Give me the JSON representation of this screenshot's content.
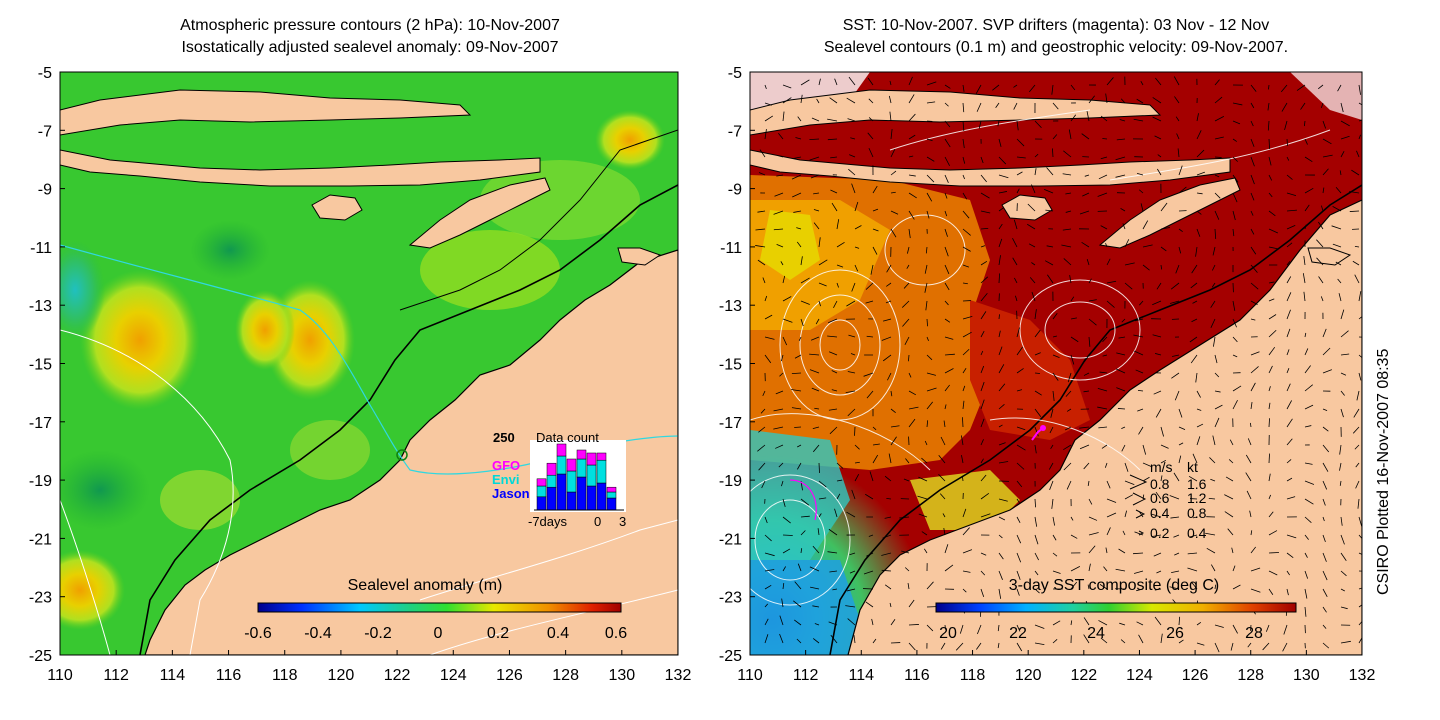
{
  "left_panel": {
    "title_line1": "Atmospheric pressure contours (2 hPa): 10-Nov-2007",
    "title_line2": "Isostatically adjusted sealevel anomaly: 09-Nov-2007",
    "colorbar_label": "Sealevel anomaly (m)",
    "colorbar_ticks": [
      "-0.6",
      "-0.4",
      "-0.2",
      "0",
      "0.2",
      "0.4",
      "0.6"
    ],
    "colors": {
      "sea": "#22c020",
      "land": "#f8c8a0"
    },
    "data_count_inset": {
      "max_label": "250",
      "title": "Data count",
      "legend": [
        {
          "name": "GFO",
          "color": "#ff00ff"
        },
        {
          "name": "Envi",
          "color": "#00e0e0"
        },
        {
          "name": "Jason",
          "color": "#0000ff"
        }
      ],
      "axis_labels": [
        "-7days",
        "0",
        "3"
      ],
      "bars": [
        {
          "jason": 0.22,
          "envi": 0.18,
          "gfo": 0.12
        },
        {
          "jason": 0.38,
          "envi": 0.2,
          "gfo": 0.2
        },
        {
          "jason": 0.6,
          "envi": 0.3,
          "gfo": 0.2
        },
        {
          "jason": 0.3,
          "envi": 0.35,
          "gfo": 0.2
        },
        {
          "jason": 0.55,
          "envi": 0.3,
          "gfo": 0.15
        },
        {
          "jason": 0.4,
          "envi": 0.35,
          "gfo": 0.2
        },
        {
          "jason": 0.45,
          "envi": 0.38,
          "gfo": 0.12
        },
        {
          "jason": 0.2,
          "envi": 0.1,
          "gfo": 0.08
        }
      ]
    }
  },
  "right_panel": {
    "title_line1": "SST: 10-Nov-2007. SVP drifters (magenta): 03 Nov - 12 Nov",
    "title_line2": "Sealevel contours (0.1 m) and geostrophic velocity: 09-Nov-2007.",
    "colorbar_label": "3-day SST composite (deg C)",
    "colorbar_ticks": [
      "20",
      "22",
      "24",
      "26",
      "28"
    ],
    "colors": {
      "warm_sea": "#a00000",
      "land": "#f8c8a0"
    },
    "velocity_legend": {
      "header": [
        "m/s",
        "kt"
      ],
      "rows": [
        [
          "0.8",
          "1.6"
        ],
        [
          "0.6",
          "1.2"
        ],
        [
          "0.4",
          "0.8"
        ],
        [
          "0.2",
          "0.4"
        ]
      ]
    }
  },
  "axes": {
    "x_ticks": [
      "110",
      "112",
      "114",
      "116",
      "118",
      "120",
      "122",
      "124",
      "126",
      "128",
      "130",
      "132"
    ],
    "y_ticks": [
      "-5",
      "-7",
      "-9",
      "-11",
      "-13",
      "-15",
      "-17",
      "-19",
      "-21",
      "-23",
      "-25"
    ],
    "lon_range": [
      110,
      132
    ],
    "lat_range": [
      -25,
      -5
    ]
  },
  "credit": "CSIRO Plotted 16-Nov-2007 08:35"
}
